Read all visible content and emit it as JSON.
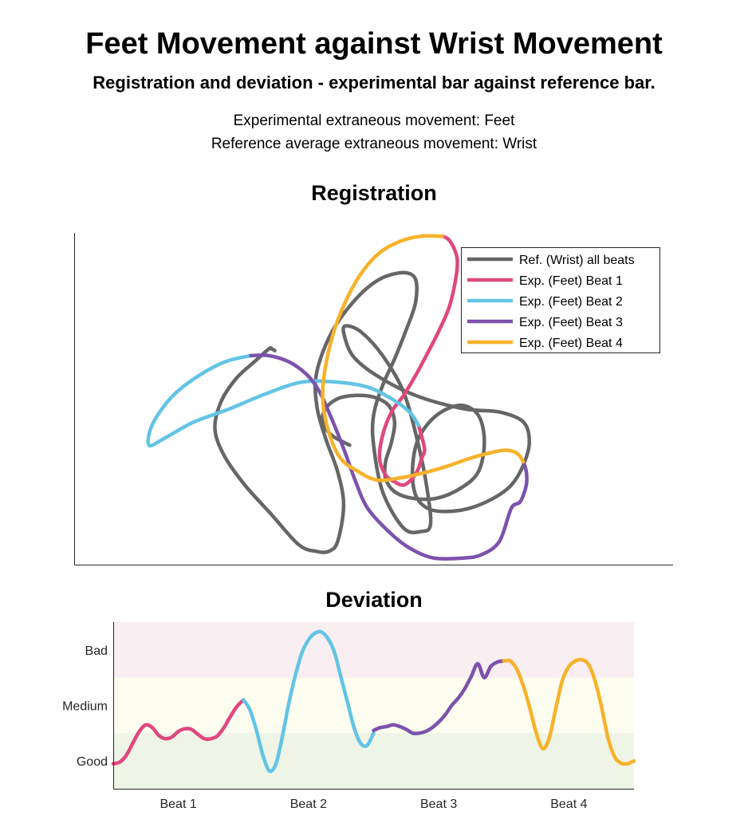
{
  "header": {
    "title": "Feet Movement against Wrist Movement",
    "subtitle": "Registration and deviation - experimental bar against reference bar.",
    "info_line_1": "Experimental extraneous movement: Feet",
    "info_line_2": "Reference average extraneous movement: Wrist"
  },
  "colors": {
    "reference": "#666666",
    "beat1": "#e0477f",
    "beat2": "#62c4e6",
    "beat3": "#7d52ad",
    "beat4": "#f7b22b",
    "bad_band": "#f9eef1",
    "medium_band": "#fdfdf0",
    "good_band": "#eef5e6"
  },
  "chart_data": [
    {
      "type": "line",
      "title": "Registration",
      "xlabel": "",
      "ylabel": "",
      "axis_ticks": "none",
      "legend_position": "top-right",
      "series": [
        {
          "name": "Ref. (Wrist) all beats",
          "color": "#666666",
          "x": [
            3.35,
            3.3,
            3.25,
            3.0,
            2.7,
            2.45,
            2.35,
            2.5,
            2.85,
            3.3,
            3.75,
            4.05,
            4.25,
            4.4,
            4.5,
            4.4,
            4.2,
            4.05,
            4.05,
            4.3,
            4.7,
            5.1,
            5.5,
            5.7,
            5.7,
            5.55,
            5.35,
            5.15,
            5.0,
            5.0,
            5.15,
            5.5,
            5.8,
            5.95,
            5.9,
            5.75,
            5.5,
            5.15,
            4.8,
            4.55,
            4.5,
            4.65,
            5.05,
            5.7,
            6.5,
            7.1,
            7.5,
            7.6,
            7.5,
            7.3,
            7.0,
            6.6,
            6.2,
            5.9,
            5.7,
            5.65,
            5.75,
            6.05,
            6.45,
            6.75,
            6.85,
            6.75,
            6.45,
            6.05,
            5.65,
            5.35,
            5.2,
            5.2,
            5.3,
            5.35,
            5.25,
            5.0,
            4.7,
            4.4,
            4.2,
            4.15,
            4.3,
            4.6
          ],
          "y": [
            6.45,
            6.5,
            6.5,
            6.1,
            5.6,
            4.9,
            4.1,
            3.3,
            2.4,
            1.5,
            0.6,
            0.4,
            0.4,
            0.7,
            1.8,
            2.8,
            3.8,
            4.8,
            5.8,
            7.0,
            8.0,
            8.6,
            8.8,
            8.6,
            7.9,
            7.1,
            6.2,
            5.4,
            4.5,
            3.6,
            2.2,
            1.1,
            1.0,
            1.2,
            2.2,
            3.6,
            5.2,
            6.3,
            7.0,
            7.2,
            7.0,
            6.3,
            5.7,
            5.1,
            4.7,
            4.6,
            4.3,
            3.7,
            3.0,
            2.4,
            2.0,
            1.7,
            1.6,
            1.7,
            2.1,
            2.9,
            3.8,
            4.5,
            4.8,
            4.5,
            3.7,
            2.8,
            2.3,
            2.0,
            2.0,
            2.2,
            2.6,
            3.1,
            3.7,
            4.3,
            4.8,
            5.05,
            5.1,
            5.0,
            4.7,
            4.3,
            3.9,
            3.6
          ]
        },
        {
          "name": "Exp. (Feet) Beat 1",
          "color": "#e0477f",
          "x": [
            6.15,
            6.25,
            6.35,
            6.4,
            6.35,
            6.25,
            6.05,
            5.85,
            5.7,
            5.5,
            5.3,
            5.15,
            5.1,
            5.2,
            5.35,
            5.5,
            5.65,
            5.75,
            5.8,
            5.85,
            5.75
          ],
          "y": [
            9.9,
            9.8,
            9.5,
            9.1,
            8.4,
            7.7,
            6.9,
            6.2,
            5.7,
            5.1,
            4.6,
            3.9,
            3.2,
            2.7,
            2.5,
            2.4,
            2.6,
            2.9,
            3.2,
            3.5,
            4.2
          ]
        },
        {
          "name": "Exp. (Feet) Beat 2",
          "color": "#62c4e6",
          "x": [
            5.75,
            5.6,
            5.3,
            4.9,
            4.4,
            3.8,
            3.2,
            2.6,
            2.0,
            1.5,
            1.25,
            1.3,
            1.6,
            2.0,
            2.5,
            2.95
          ],
          "y": [
            4.2,
            4.6,
            5.0,
            5.35,
            5.5,
            5.5,
            5.15,
            4.7,
            4.3,
            3.8,
            3.6,
            4.2,
            5.0,
            5.6,
            6.1,
            6.3
          ]
        },
        {
          "name": "Exp. (Feet) Beat 3",
          "color": "#7d52ad",
          "x": [
            2.95,
            3.25,
            3.6,
            3.9,
            4.1,
            4.3,
            4.5,
            4.7,
            4.9,
            5.25,
            5.6,
            6.0,
            6.5,
            6.8,
            7.1,
            7.3,
            7.45,
            7.55,
            7.55,
            7.5
          ],
          "y": [
            6.3,
            6.3,
            6.1,
            5.7,
            5.2,
            4.4,
            3.5,
            2.5,
            1.7,
            1.0,
            0.5,
            0.2,
            0.2,
            0.3,
            0.7,
            1.7,
            1.9,
            2.4,
            2.8,
            3.1
          ]
        },
        {
          "name": "Exp. (Feet) Beat 4",
          "color": "#f7b22b",
          "x": [
            7.5,
            7.4,
            7.2,
            6.9,
            6.6,
            6.2,
            5.8,
            5.4,
            5.05,
            4.75,
            4.45,
            4.25,
            4.15,
            4.2,
            4.35,
            4.55,
            4.8,
            5.1,
            5.45,
            5.8,
            6.15
          ],
          "y": [
            3.1,
            3.35,
            3.45,
            3.35,
            3.2,
            2.95,
            2.75,
            2.6,
            2.55,
            2.8,
            3.2,
            4.0,
            5.0,
            6.0,
            7.1,
            8.0,
            8.8,
            9.4,
            9.75,
            9.9,
            9.9
          ]
        }
      ]
    },
    {
      "type": "line",
      "title": "Deviation",
      "xlabel": "",
      "ylabel": "",
      "categories": [
        "Beat 1",
        "Beat 2",
        "Beat 3",
        "Beat 4"
      ],
      "y_tick_labels": [
        "Good",
        "Medium",
        "Bad"
      ],
      "y_tick_values": [
        0.5,
        1.5,
        2.5
      ],
      "ylim": [
        0,
        3
      ],
      "xlim": [
        0,
        4
      ],
      "bands": [
        {
          "label": "Good",
          "from": 0,
          "to": 1
        },
        {
          "label": "Medium",
          "from": 1,
          "to": 2
        },
        {
          "label": "Bad",
          "from": 2,
          "to": 3
        }
      ],
      "series": [
        {
          "name": "Beat 1",
          "color": "#e0477f",
          "x": [
            0.0,
            0.05,
            0.1,
            0.15,
            0.2,
            0.25,
            0.3,
            0.35,
            0.4,
            0.45,
            0.5,
            0.55,
            0.6,
            0.65,
            0.7,
            0.75,
            0.8,
            0.85,
            0.9,
            0.95,
            1.0
          ],
          "y": [
            0.45,
            0.48,
            0.6,
            0.82,
            1.03,
            1.15,
            1.1,
            0.96,
            0.9,
            0.93,
            1.03,
            1.08,
            1.07,
            0.98,
            0.9,
            0.9,
            0.95,
            1.1,
            1.3,
            1.48,
            1.6
          ]
        },
        {
          "name": "Beat 2",
          "color": "#62c4e6",
          "x": [
            1.0,
            1.05,
            1.1,
            1.15,
            1.2,
            1.25,
            1.3,
            1.35,
            1.4,
            1.45,
            1.5,
            1.55,
            1.6,
            1.65,
            1.7,
            1.75,
            1.8,
            1.85,
            1.9,
            1.95,
            2.0
          ],
          "y": [
            1.6,
            1.42,
            1.05,
            0.6,
            0.32,
            0.45,
            0.95,
            1.55,
            2.05,
            2.45,
            2.68,
            2.8,
            2.82,
            2.7,
            2.45,
            2.0,
            1.55,
            1.1,
            0.82,
            0.78,
            1.0
          ]
        },
        {
          "name": "Beat 3",
          "color": "#7d52ad",
          "x": [
            2.0,
            2.05,
            2.1,
            2.15,
            2.2,
            2.25,
            2.3,
            2.35,
            2.4,
            2.45,
            2.5,
            2.55,
            2.6,
            2.65,
            2.7,
            2.75,
            2.8,
            2.85,
            2.9,
            2.95,
            3.0
          ],
          "y": [
            1.05,
            1.1,
            1.12,
            1.15,
            1.12,
            1.07,
            1.0,
            1.0,
            1.03,
            1.1,
            1.2,
            1.33,
            1.5,
            1.63,
            1.8,
            2.02,
            2.25,
            2.0,
            2.2,
            2.28,
            2.3
          ]
        },
        {
          "name": "Beat 4",
          "color": "#f7b22b",
          "x": [
            3.0,
            3.05,
            3.1,
            3.15,
            3.2,
            3.25,
            3.3,
            3.35,
            3.4,
            3.45,
            3.5,
            3.55,
            3.6,
            3.65,
            3.7,
            3.75,
            3.8,
            3.85,
            3.9,
            3.95,
            4.0
          ],
          "y": [
            2.3,
            2.3,
            2.15,
            1.85,
            1.45,
            1.0,
            0.72,
            0.92,
            1.45,
            1.95,
            2.2,
            2.3,
            2.32,
            2.24,
            1.95,
            1.48,
            0.92,
            0.58,
            0.46,
            0.45,
            0.5
          ]
        }
      ]
    }
  ]
}
